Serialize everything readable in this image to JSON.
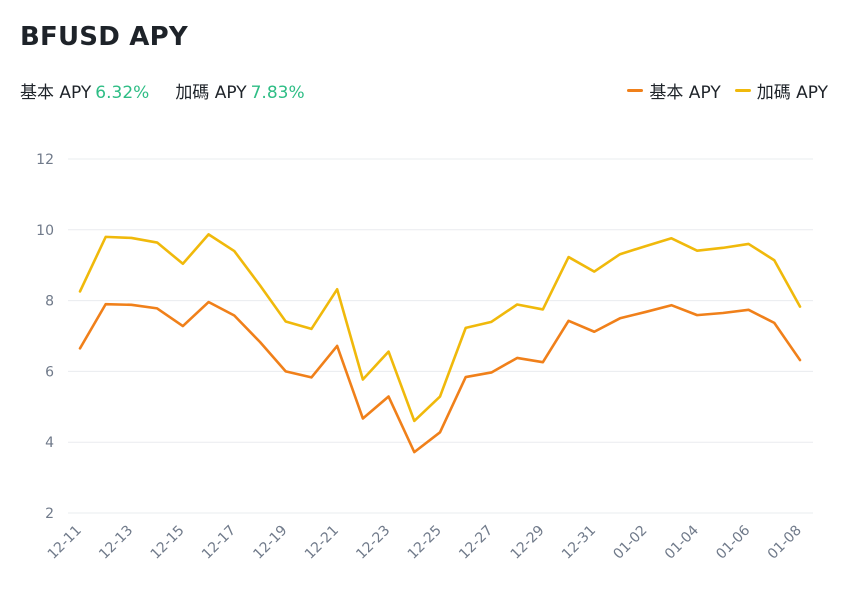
{
  "header": {
    "title": "BFUSD APY",
    "base_label": "基本 APY",
    "base_value": "6.32%",
    "bonus_label": "加碼 APY",
    "bonus_value": "7.83%"
  },
  "legend": {
    "base_label": "基本 APY",
    "bonus_label": "加碼 APY"
  },
  "colors": {
    "base": "#f0801a",
    "bonus": "#f0b90b",
    "value_green": "#2ebd85",
    "grid": "#eaecef",
    "tick": "#707a8a"
  },
  "chart_data": {
    "type": "line",
    "title": "BFUSD APY",
    "ylim": [
      2,
      12
    ],
    "yticks": [
      2,
      4,
      6,
      8,
      10,
      12
    ],
    "x": [
      "12-11",
      "12-12",
      "12-13",
      "12-14",
      "12-15",
      "12-16",
      "12-17",
      "12-18",
      "12-19",
      "12-20",
      "12-21",
      "12-22",
      "12-23",
      "12-24",
      "12-25",
      "12-26",
      "12-27",
      "12-28",
      "12-29",
      "12-30",
      "12-31",
      "01-01",
      "01-02",
      "01-03",
      "01-04",
      "01-05",
      "01-06",
      "01-07",
      "01-08"
    ],
    "xtick_labels": [
      "12-11",
      "12-13",
      "12-15",
      "12-17",
      "12-19",
      "12-21",
      "12-23",
      "12-25",
      "12-27",
      "12-29",
      "12-31",
      "01-02",
      "01-04",
      "01-06",
      "01-08"
    ],
    "series": [
      {
        "name": "基本 APY",
        "color": "#f0801a",
        "values": [
          6.65,
          7.9,
          7.88,
          7.78,
          7.28,
          7.96,
          7.58,
          6.83,
          6.0,
          5.83,
          6.72,
          4.67,
          5.29,
          3.72,
          4.28,
          5.84,
          5.97,
          6.38,
          6.26,
          7.43,
          7.12,
          7.5,
          7.68,
          7.87,
          7.59,
          7.65,
          7.74,
          7.37,
          6.32
        ]
      },
      {
        "name": "加碼 APY",
        "color": "#f0b90b",
        "values": [
          8.26,
          9.8,
          9.77,
          9.64,
          9.04,
          9.87,
          9.4,
          8.43,
          7.41,
          7.2,
          8.32,
          5.77,
          6.56,
          4.6,
          5.29,
          7.23,
          7.4,
          7.89,
          7.75,
          9.23,
          8.82,
          9.31,
          9.54,
          9.76,
          9.41,
          9.49,
          9.6,
          9.14,
          7.83
        ]
      }
    ]
  }
}
